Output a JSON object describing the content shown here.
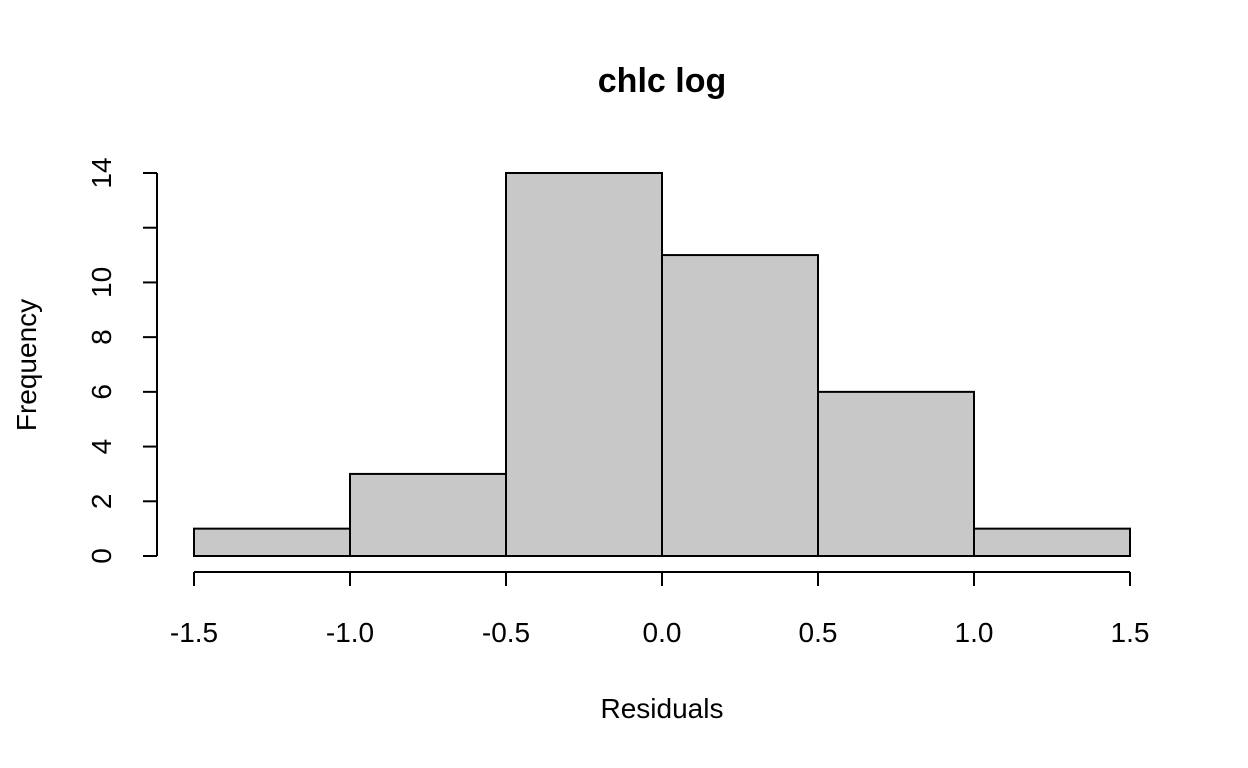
{
  "chart_data": {
    "type": "bar",
    "title": "chlc log",
    "xlabel": "Residuals",
    "ylabel": "Frequency",
    "bins": [
      {
        "start": -1.5,
        "end": -1.0,
        "count": 1
      },
      {
        "start": -1.0,
        "end": -0.5,
        "count": 3
      },
      {
        "start": -0.5,
        "end": 0.0,
        "count": 14
      },
      {
        "start": 0.0,
        "end": 0.5,
        "count": 11
      },
      {
        "start": 0.5,
        "end": 1.0,
        "count": 6
      },
      {
        "start": 1.0,
        "end": 1.5,
        "count": 1
      }
    ],
    "xlim": [
      -1.5,
      1.5
    ],
    "ylim": [
      0,
      14
    ],
    "xticks": [
      -1.5,
      -1.0,
      -0.5,
      0.0,
      0.5,
      1.0,
      1.5
    ],
    "xtick_labels": [
      "-1.5",
      "-1.0",
      "-0.5",
      "0.0",
      "0.5",
      "1.0",
      "1.5"
    ],
    "yticks": [
      0,
      2,
      4,
      6,
      8,
      10,
      12,
      14
    ],
    "ytick_labels": [
      "0",
      "2",
      "4",
      "6",
      "8",
      "10",
      "",
      "14"
    ],
    "bar_color": "#c8c8c8",
    "grid": false
  }
}
